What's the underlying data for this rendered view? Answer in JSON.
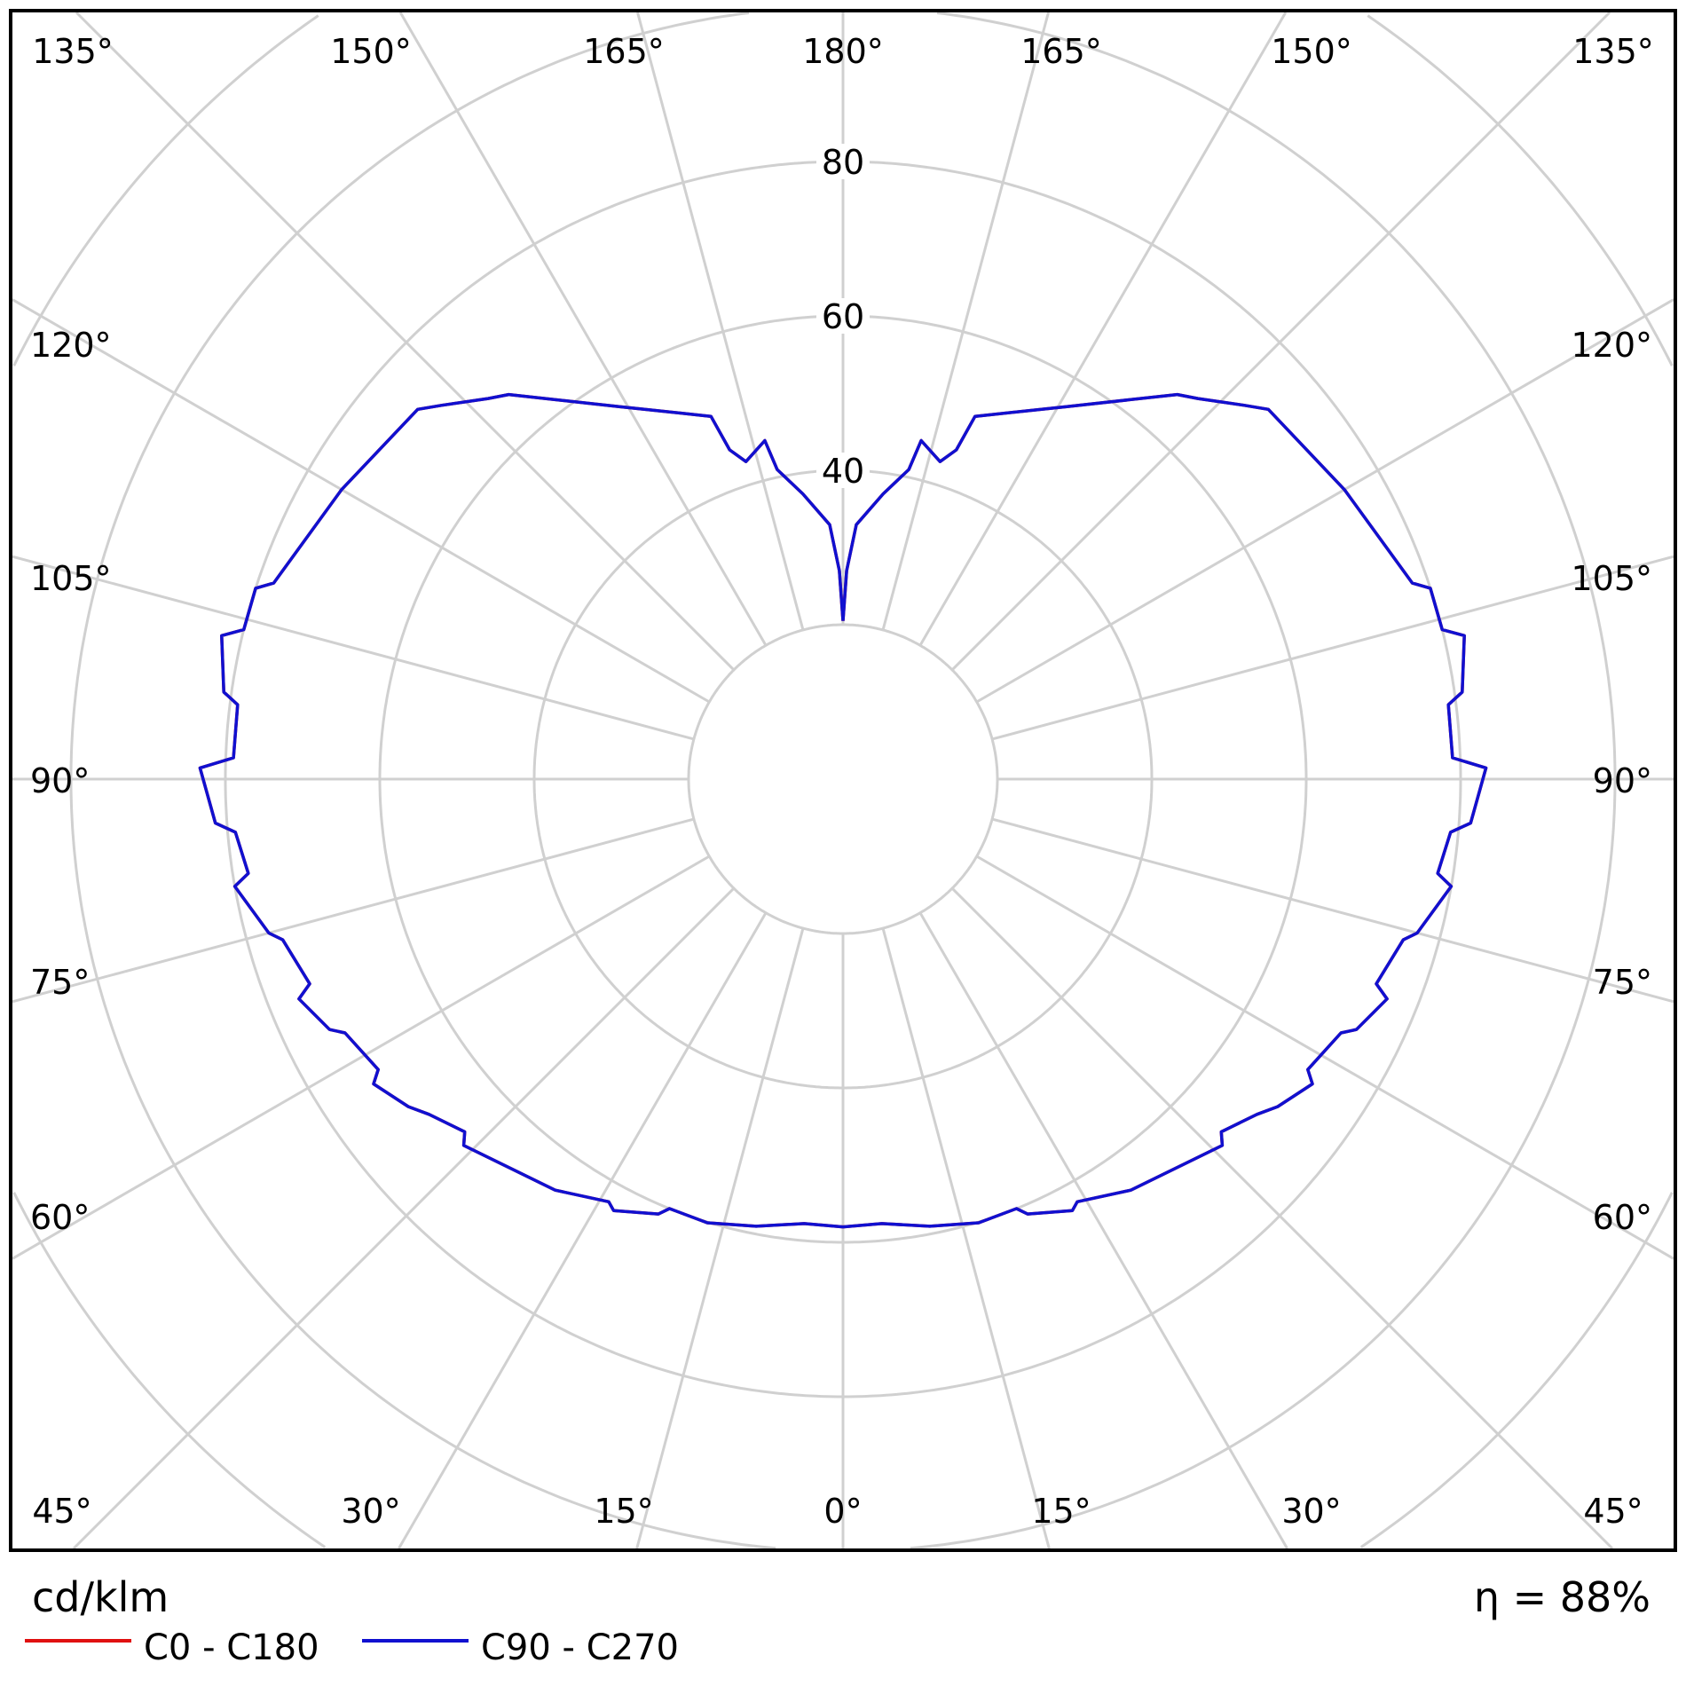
{
  "chart_data": {
    "type": "polar",
    "unit_label": "cd/klm",
    "efficiency_label": "η = 88%",
    "radial_ticks": [
      20,
      40,
      60,
      80,
      100,
      120
    ],
    "radial_tick_labels": [
      "40",
      "60",
      "80"
    ],
    "angle_labels": {
      "top": [
        "135°",
        "150°",
        "165°",
        "180°",
        "165°",
        "150°",
        "135°"
      ],
      "left": [
        "120°",
        "105°",
        "90°",
        "75°",
        "60°"
      ],
      "right": [
        "120°",
        "105°",
        "90°",
        "75°",
        "60°"
      ],
      "bottom": [
        "45°",
        "30°",
        "15°",
        "0°",
        "15°",
        "30°",
        "45°"
      ]
    },
    "grid": true,
    "legend_placement": "bottom-left",
    "series": [
      {
        "name": "C0 - C180",
        "color": "#e01010",
        "gamma": [
          0,
          5,
          11,
          17,
          22,
          23,
          28,
          29,
          35,
          46,
          47,
          51,
          53,
          57,
          58,
          63,
          64,
          68,
          69,
          74,
          75,
          80,
          81,
          85,
          86,
          91,
          92,
          97,
          98,
          103,
          104,
          108,
          109,
          120,
          131,
          133,
          137,
          139,
          149,
          160,
          161,
          163,
          167,
          168,
          172,
          177,
          179,
          180
        ],
        "intensity": [
          58,
          57.8,
          59,
          60.1,
          60,
          61.2,
          63.3,
          62.6,
          65,
          68.3,
          67,
          69,
          70.5,
          72.5,
          71,
          72.4,
          74,
          76,
          74,
          75.5,
          77,
          80,
          78,
          79,
          81.5,
          83.3,
          79,
          79,
          81,
          82.6,
          80,
          80,
          78,
          75,
          73,
          71,
          67.4,
          66,
          56.3,
          50,
          45.1,
          43,
          45,
          41,
          37.3,
          33,
          27,
          20.5
        ]
      },
      {
        "name": "C90 - C270",
        "color": "#1010d0",
        "gamma": [
          0,
          5,
          11,
          17,
          22,
          23,
          28,
          29,
          35,
          46,
          47,
          51,
          53,
          57,
          58,
          63,
          64,
          68,
          69,
          74,
          75,
          80,
          81,
          85,
          86,
          91,
          92,
          97,
          98,
          103,
          104,
          108,
          109,
          120,
          131,
          133,
          137,
          139,
          149,
          160,
          161,
          163,
          167,
          168,
          172,
          177,
          179,
          180
        ],
        "intensity": [
          58,
          57.8,
          59,
          60.1,
          60,
          61.2,
          63.3,
          62.6,
          65,
          68.3,
          67,
          69,
          70.5,
          72.5,
          71,
          72.4,
          74,
          76,
          74,
          75.5,
          77,
          80,
          78,
          79,
          81.5,
          83.3,
          79,
          79,
          81,
          82.6,
          80,
          80,
          78,
          75,
          73,
          71,
          67.4,
          66,
          56.3,
          50,
          45.1,
          43,
          45,
          41,
          37.3,
          33,
          27,
          20.5
        ]
      }
    ]
  }
}
